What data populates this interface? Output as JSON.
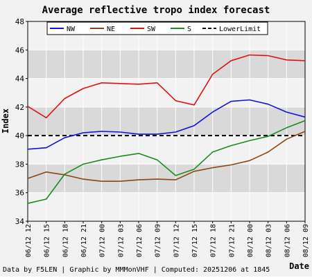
{
  "chart_data": {
    "type": "line",
    "title": "Average reflective tropo index forecast",
    "xlabel": "Date",
    "ylabel": "Index",
    "ylim": [
      34,
      48
    ],
    "yticks": [
      "34",
      "36",
      "38",
      "40",
      "42",
      "44",
      "46",
      "48"
    ],
    "grid": true,
    "legend_position": "top",
    "categories": [
      "06/12 12",
      "06/12 15",
      "06/12 18",
      "06/12 21",
      "07/12 00",
      "07/12 03",
      "07/12 06",
      "07/12 09",
      "07/12 12",
      "07/12 15",
      "07/12 18",
      "07/12 21",
      "08/12 00",
      "08/12 03",
      "08/12 06",
      "08/12 09"
    ],
    "series": [
      {
        "name": "NW",
        "color": "#1010e0",
        "values": [
          39.05,
          39.15,
          39.85,
          40.2,
          40.3,
          40.25,
          40.1,
          40.1,
          40.25,
          40.7,
          41.65,
          42.4,
          42.5,
          42.2,
          41.65,
          41.3
        ]
      },
      {
        "name": "NE",
        "color": "#8b4513",
        "values": [
          37.0,
          37.45,
          37.25,
          36.95,
          36.8,
          36.8,
          36.9,
          36.95,
          36.9,
          37.5,
          37.75,
          37.95,
          38.25,
          38.85,
          39.75,
          40.3
        ]
      },
      {
        "name": "SW",
        "color": "#e01010",
        "values": [
          42.05,
          41.25,
          42.6,
          43.3,
          43.7,
          43.65,
          43.6,
          43.7,
          42.45,
          42.15,
          44.3,
          45.25,
          45.65,
          45.6,
          45.3,
          45.25
        ]
      },
      {
        "name": "S",
        "color": "#1a8a1a",
        "values": [
          35.25,
          35.55,
          37.3,
          38.0,
          38.3,
          38.55,
          38.75,
          38.3,
          37.2,
          37.65,
          38.85,
          39.3,
          39.65,
          39.95,
          40.55,
          41.05
        ]
      }
    ],
    "reference_line": {
      "name": "LowerLimit",
      "value": 40,
      "color": "#000000"
    },
    "band_color": "#d9d9d9",
    "plot_background": "#f2f2f2",
    "footer": "Data by F5LEN | Graphic by MMMonVHF | Computed: 20251206 at 1845"
  }
}
